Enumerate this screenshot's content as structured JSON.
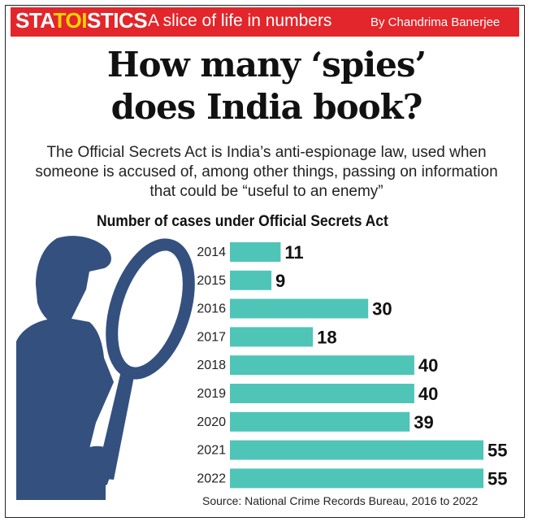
{
  "header": {
    "brand_prefix": "STA",
    "brand_mid": "TOI",
    "brand_suffix": "STICS",
    "tagline": "A slice of life in numbers",
    "byline": "By Chandrima Banerjee"
  },
  "title": "How many ‘spies’ does India book?",
  "subtitle": "The Official Secrets Act is India’s anti-espionage law, used when someone is accused of, among other things, passing on information that could be “useful to an enemy”",
  "source": "Source: National Crime Records Bureau, 2016 to 2022",
  "colors": {
    "accent": "#e2262b",
    "bar": "#4fc5b8",
    "silhouette": "#34507f"
  },
  "chart_data": {
    "type": "bar",
    "orientation": "horizontal",
    "title": "Number of cases under Official Secrets Act",
    "categories": [
      "2014",
      "2015",
      "2016",
      "2017",
      "2018",
      "2019",
      "2020",
      "2021",
      "2022"
    ],
    "values": [
      11,
      9,
      30,
      18,
      40,
      40,
      39,
      55,
      55
    ],
    "xlim": [
      0,
      55
    ],
    "grid": false,
    "data_labels": true
  }
}
